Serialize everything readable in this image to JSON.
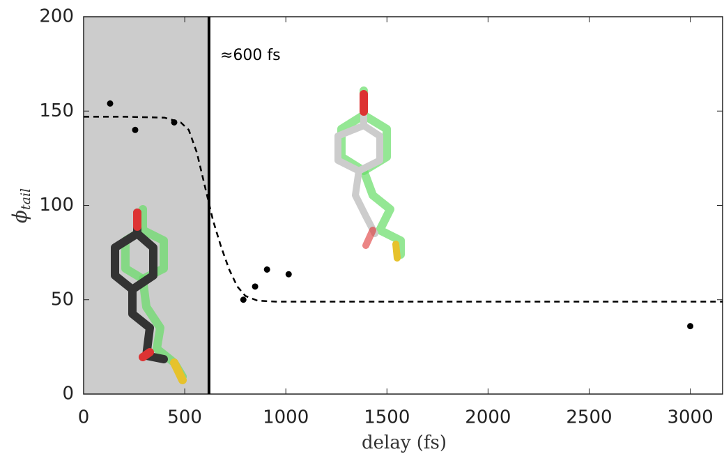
{
  "chart_data": {
    "type": "scatter",
    "x_label": "delay (fs)",
    "y_label": {
      "symbol": "ϕ",
      "subscript": "tail"
    },
    "annotation": "≈600 fs",
    "xlim": [
      0,
      3160
    ],
    "xticks": [
      0,
      500,
      1000,
      1500,
      2000,
      2500,
      3000
    ],
    "ylim": [
      0,
      200
    ],
    "yticks": [
      0,
      50,
      100,
      150,
      200
    ],
    "shaded_region": [
      0,
      620
    ],
    "shade_color": "#cccccc",
    "vline": 620,
    "series": [
      {
        "kind": "points",
        "color": "#000000",
        "x": [
          131,
          255,
          448,
          790,
          848,
          907,
          1014,
          3000
        ],
        "values": [
          154,
          140,
          144,
          50,
          57,
          66,
          63.5,
          36
        ]
      },
      {
        "kind": "fit",
        "color": "#000000",
        "x": [
          0,
          200,
          400,
          480,
          520,
          560,
          600,
          640,
          680,
          720,
          760,
          800,
          860,
          950,
          1200,
          2000,
          3160
        ],
        "values": [
          147,
          147,
          146.5,
          144,
          140,
          128,
          110,
          92,
          78,
          66,
          57,
          52,
          49.5,
          49,
          49,
          49,
          49
        ]
      }
    ]
  }
}
